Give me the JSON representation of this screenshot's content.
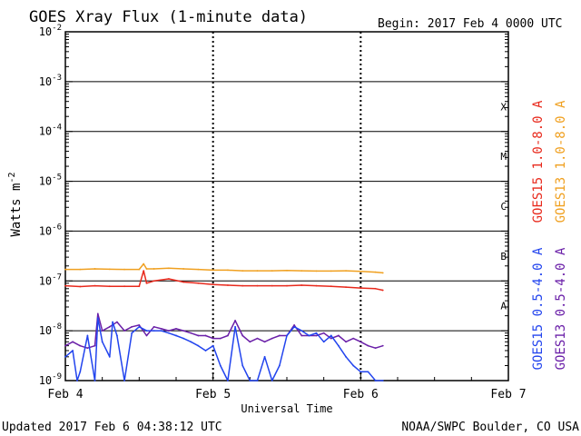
{
  "chart_data": {
    "type": "line",
    "title": "GOES Xray Flux (1-minute data)",
    "begin_label": "Begin:  2017 Feb 4 0000 UTC",
    "xlabel": "Universal Time",
    "ylabel_base": "Watts m",
    "ylabel_exp": "-2",
    "updated": "Updated 2017 Feb  6 04:38:12 UTC",
    "source": "NOAA/SWPC Boulder, CO USA",
    "x_unit": "days since 2017 Feb 4 0000 UTC",
    "xlim": [
      0,
      3
    ],
    "x_ticks": [
      {
        "value": 0,
        "label": "Feb 4"
      },
      {
        "value": 1,
        "label": "Feb 5"
      },
      {
        "value": 2,
        "label": "Feb 6"
      },
      {
        "value": 3,
        "label": "Feb 7"
      }
    ],
    "y_scale": "log",
    "ylim_exp": [
      -9,
      -2
    ],
    "y_ticks": [
      {
        "exp": -9,
        "base": "10",
        "sup": "-9"
      },
      {
        "exp": -8,
        "base": "10",
        "sup": "-8"
      },
      {
        "exp": -7,
        "base": "10",
        "sup": "-7"
      },
      {
        "exp": -6,
        "base": "10",
        "sup": "-6"
      },
      {
        "exp": -5,
        "base": "10",
        "sup": "-5"
      },
      {
        "exp": -4,
        "base": "10",
        "sup": "-4"
      },
      {
        "exp": -3,
        "base": "10",
        "sup": "-3"
      },
      {
        "exp": -2,
        "base": "10",
        "sup": "-2"
      }
    ],
    "flare_classes": [
      {
        "label": "A",
        "exp": -7.5
      },
      {
        "label": "B",
        "exp": -6.5
      },
      {
        "label": "C",
        "exp": -5.5
      },
      {
        "label": "M",
        "exp": -4.5
      },
      {
        "label": "X",
        "exp": -3.5
      }
    ],
    "legend": [
      {
        "label": "GOES15 1.0-8.0 A",
        "color": "#e8291c"
      },
      {
        "label": "GOES13 1.0-8.0 A",
        "color": "#f0a020"
      },
      {
        "label": "GOES15 0.5-4.0 A",
        "color": "#2244ee"
      },
      {
        "label": "GOES13 0.5-4.0 A",
        "color": "#6a1fa8"
      }
    ],
    "series": [
      {
        "name": "GOES13 1.0-8.0 A",
        "color": "#f0a020",
        "x": [
          0,
          0.1,
          0.2,
          0.3,
          0.4,
          0.5,
          0.53,
          0.55,
          0.6,
          0.7,
          0.8,
          0.9,
          1.0,
          1.1,
          1.2,
          1.3,
          1.4,
          1.5,
          1.6,
          1.7,
          1.8,
          1.9,
          2.0,
          2.1,
          2.15
        ],
        "y": [
          1.7e-07,
          1.7e-07,
          1.75e-07,
          1.72e-07,
          1.7e-07,
          1.7e-07,
          2.2e-07,
          1.75e-07,
          1.75e-07,
          1.8e-07,
          1.75e-07,
          1.7e-07,
          1.65e-07,
          1.65e-07,
          1.6e-07,
          1.6e-07,
          1.6e-07,
          1.62e-07,
          1.6e-07,
          1.58e-07,
          1.58e-07,
          1.6e-07,
          1.55e-07,
          1.5e-07,
          1.45e-07
        ]
      },
      {
        "name": "GOES15 1.0-8.0 A",
        "color": "#e8291c",
        "x": [
          0,
          0.1,
          0.2,
          0.3,
          0.4,
          0.5,
          0.53,
          0.55,
          0.6,
          0.7,
          0.8,
          0.9,
          1.0,
          1.1,
          1.2,
          1.3,
          1.4,
          1.5,
          1.6,
          1.7,
          1.8,
          1.9,
          2.0,
          2.1,
          2.15
        ],
        "y": [
          8e-08,
          7.7e-08,
          8e-08,
          7.8e-08,
          7.8e-08,
          7.8e-08,
          1.6e-07,
          9e-08,
          1e-07,
          1.1e-07,
          9.5e-08,
          9e-08,
          8.5e-08,
          8.2e-08,
          8e-08,
          8e-08,
          8e-08,
          8e-08,
          8.2e-08,
          8e-08,
          7.8e-08,
          7.5e-08,
          7.2e-08,
          7e-08,
          6.5e-08
        ]
      },
      {
        "name": "GOES13 0.5-4.0 A",
        "color": "#6a1fa8",
        "x": [
          0,
          0.05,
          0.1,
          0.15,
          0.2,
          0.22,
          0.25,
          0.3,
          0.35,
          0.4,
          0.45,
          0.5,
          0.55,
          0.6,
          0.65,
          0.7,
          0.75,
          0.8,
          0.85,
          0.9,
          0.95,
          1.0,
          1.05,
          1.1,
          1.15,
          1.2,
          1.25,
          1.3,
          1.35,
          1.4,
          1.45,
          1.5,
          1.55,
          1.6,
          1.65,
          1.7,
          1.75,
          1.8,
          1.85,
          1.9,
          1.95,
          2.0,
          2.05,
          2.1,
          2.15
        ],
        "y": [
          5e-09,
          6e-09,
          5e-09,
          4.5e-09,
          5e-09,
          2.2e-08,
          1e-08,
          1.2e-08,
          1.5e-08,
          1e-08,
          1.2e-08,
          1.3e-08,
          8e-09,
          1.2e-08,
          1.1e-08,
          1e-08,
          1.1e-08,
          1e-08,
          9e-09,
          8e-09,
          8e-09,
          7e-09,
          7e-09,
          8e-09,
          1.6e-08,
          8e-09,
          6e-09,
          7e-09,
          6e-09,
          7e-09,
          8e-09,
          8e-09,
          1.3e-08,
          8e-09,
          8e-09,
          8e-09,
          9e-09,
          7e-09,
          8e-09,
          6e-09,
          7e-09,
          6e-09,
          5e-09,
          4.5e-09,
          5e-09
        ]
      },
      {
        "name": "GOES15 0.5-4.0 A",
        "color": "#2244ee",
        "x": [
          0,
          0.05,
          0.08,
          0.1,
          0.15,
          0.2,
          0.22,
          0.25,
          0.3,
          0.32,
          0.35,
          0.4,
          0.45,
          0.5,
          0.55,
          0.6,
          0.65,
          0.7,
          0.75,
          0.8,
          0.85,
          0.9,
          0.95,
          1.0,
          1.05,
          1.1,
          1.15,
          1.2,
          1.25,
          1.3,
          1.35,
          1.4,
          1.45,
          1.5,
          1.55,
          1.6,
          1.65,
          1.7,
          1.75,
          1.8,
          1.85,
          1.9,
          1.95,
          2.0,
          2.05,
          2.1,
          2.15
        ],
        "y": [
          3e-09,
          4e-09,
          1e-09,
          1.5e-09,
          8e-09,
          1e-09,
          1.8e-08,
          6e-09,
          3e-09,
          1.5e-08,
          8e-09,
          1e-09,
          9e-09,
          1.2e-08,
          1e-08,
          1e-08,
          1e-08,
          9e-09,
          8e-09,
          7e-09,
          6e-09,
          5e-09,
          4e-09,
          5e-09,
          2e-09,
          1e-09,
          1.2e-08,
          2e-09,
          1e-09,
          1e-09,
          3e-09,
          1e-09,
          2e-09,
          8e-09,
          1.2e-08,
          1e-08,
          8e-09,
          9e-09,
          6e-09,
          8e-09,
          5e-09,
          3e-09,
          2e-09,
          1.5e-09,
          1.5e-09,
          1e-09,
          1e-09
        ]
      }
    ]
  }
}
